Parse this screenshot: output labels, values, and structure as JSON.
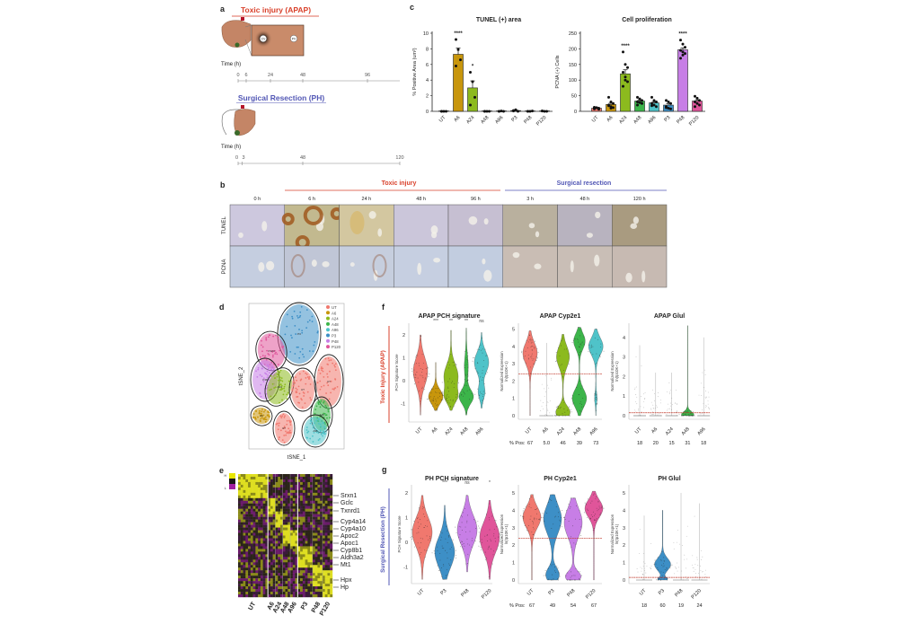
{
  "group_colors": {
    "UT": "#f0786e",
    "A6": "#c8960c",
    "A24": "#8cba1e",
    "A48": "#3cb54a",
    "A96": "#4fc3c9",
    "P3": "#3d8fc6",
    "P48": "#c77ee6",
    "P120": "#e0559a"
  },
  "accent_colors": {
    "toxic": "#d9412b",
    "surgical": "#5257b5"
  },
  "panel_a": {
    "label": "a",
    "toxic_title": "Toxic injury (APAP)",
    "cv_label": "CV",
    "pv_label": "PV",
    "time_label": "Time (h)",
    "toxic_ticks": [
      {
        "t": 0,
        "label": "0"
      },
      {
        "t": 6,
        "label": "6"
      },
      {
        "t": 24,
        "label": "24"
      },
      {
        "t": 48,
        "label": "48"
      },
      {
        "t": 96,
        "label": "96"
      }
    ],
    "ph_title": "Surgical Resection (PH)",
    "ph_time_label": "Time (h)",
    "ph_ticks": [
      {
        "t": 0,
        "label": "0"
      },
      {
        "t": 3,
        "label": "3"
      },
      {
        "t": 48,
        "label": "48"
      },
      {
        "t": 120,
        "label": "120"
      }
    ],
    "axis_max_h": 120
  },
  "panel_b": {
    "label": "b",
    "toxic_header": "Toxic injury",
    "surgical_header": "Surgical resection",
    "time_labels": [
      "0 h",
      "6 h",
      "24 h",
      "48 h",
      "96 h",
      "3 h",
      "48 h",
      "120 h"
    ],
    "row_labels": [
      "TUNEL",
      "PCNA"
    ]
  },
  "panel_c": {
    "label": "c"
  },
  "chart_data": [
    {
      "type": "bar",
      "title": "TUNEL (+) area",
      "ylabel": "% Positive Area (um²)",
      "xlabel": "",
      "categories": [
        "UT",
        "A6",
        "A24",
        "A48",
        "A96",
        "P3",
        "P48",
        "P120"
      ],
      "values": [
        0,
        7.3,
        3.0,
        0,
        0,
        0.1,
        0,
        0
      ],
      "sem": [
        0,
        0.8,
        0.9,
        0,
        0,
        0.05,
        0,
        0
      ],
      "points": [
        [
          0,
          0,
          0,
          0
        ],
        [
          9.2,
          7.9,
          6.6,
          5.8
        ],
        [
          5.0,
          3.8,
          1.8,
          0.8
        ],
        [
          0,
          0,
          0,
          0
        ],
        [
          0,
          0.05,
          0,
          0
        ],
        [
          0.1,
          0.2,
          0,
          0.05
        ],
        [
          0,
          0,
          0.05,
          0
        ],
        [
          0.05,
          0,
          0,
          0.05
        ]
      ],
      "significance": [
        "",
        "****",
        "*",
        "",
        "",
        "",
        "",
        ""
      ],
      "ylim": [
        0,
        10
      ],
      "yticks": [
        0,
        2,
        4,
        6,
        8,
        10
      ],
      "grid": false
    },
    {
      "type": "bar",
      "title": "Cell proliferation",
      "ylabel": "PCNA (+) Cells",
      "xlabel": "",
      "categories": [
        "UT",
        "A6",
        "A24",
        "A48",
        "A96",
        "P3",
        "P48",
        "P120"
      ],
      "values": [
        10,
        22,
        120,
        33,
        27,
        20,
        197,
        33
      ],
      "sem": [
        2,
        4,
        13,
        3,
        3,
        4,
        6,
        4
      ],
      "points": [
        [
          8,
          12,
          10,
          9,
          11,
          7,
          13
        ],
        [
          45,
          30,
          25,
          18,
          15,
          12,
          20,
          10
        ],
        [
          190,
          150,
          140,
          125,
          110,
          95,
          80,
          100
        ],
        [
          45,
          40,
          35,
          30,
          28,
          25,
          20
        ],
        [
          45,
          35,
          30,
          25,
          20,
          15,
          18
        ],
        [
          35,
          30,
          25,
          15,
          10,
          8,
          12
        ],
        [
          228,
          215,
          205,
          195,
          190,
          185,
          170,
          180
        ],
        [
          48,
          42,
          35,
          30,
          25,
          20,
          15
        ]
      ],
      "significance": [
        "",
        "",
        "****",
        "",
        "",
        "",
        "****",
        ""
      ],
      "ylim": [
        0,
        250
      ],
      "yticks": [
        0,
        50,
        100,
        150,
        200,
        250
      ],
      "grid": false
    }
  ],
  "panel_d": {
    "label": "d",
    "xlabel": "tSNE_1",
    "ylabel": "tSNE_2",
    "legend": [
      "UT",
      "A6",
      "A24",
      "A48",
      "A96",
      "P3",
      "P48",
      "P120"
    ]
  },
  "panel_e": {
    "label": "e",
    "scale_high": "H",
    "scale_low": "L",
    "columns": [
      "UT",
      "A6",
      "A24",
      "A48",
      "A96",
      "P3",
      "P48",
      "P120"
    ],
    "genes": [
      "Srxn1",
      "Gclc",
      "Txnrd1",
      "Cyp4a14",
      "Cyp4a10",
      "Apoc2",
      "Apoc1",
      "Cyp8b1",
      "Aldh3a2",
      "Mt1",
      "Hpx",
      "Hp"
    ]
  },
  "panel_f": {
    "label": "f",
    "side_label": "Toxic Injury (APAP)",
    "pos_label": "% Pos:",
    "plots": [
      {
        "title": "APAP PCH signature",
        "ylabel": [
          "PCH Signature Score"
        ],
        "yticks": [
          -1,
          0,
          1,
          2
        ],
        "threshold": null,
        "groups": [
          {
            "name": "UT",
            "sig": "",
            "min": -1.5,
            "max": 2.0,
            "peaks": [
              [
                0.4,
                0.6,
                1
              ]
            ]
          },
          {
            "name": "A6",
            "sig": "***",
            "min": -1.3,
            "max": 0.8,
            "peaks": [
              [
                -0.7,
                0.3,
                1
              ]
            ]
          },
          {
            "name": "A24",
            "sig": "**",
            "min": -1.3,
            "max": 2.2,
            "peaks": [
              [
                0.2,
                0.5,
                0.9
              ],
              [
                -0.7,
                0.3,
                0.7
              ]
            ]
          },
          {
            "name": "A48",
            "sig": "**",
            "min": -1.5,
            "max": 2.3,
            "peaks": [
              [
                -0.7,
                0.3,
                1
              ],
              [
                0.6,
                0.5,
                0.25
              ]
            ]
          },
          {
            "name": "A96",
            "sig": "ns",
            "min": -1.2,
            "max": 2.1,
            "peaks": [
              [
                0.8,
                0.45,
                1
              ],
              [
                -0.5,
                0.3,
                0.45
              ]
            ]
          }
        ],
        "pos": []
      },
      {
        "title": "APAP Cyp2e1",
        "ylabel": [
          "Normalized Expression",
          "ln(tp10K+1)"
        ],
        "yticks": [
          0,
          1,
          2,
          3,
          4,
          5
        ],
        "threshold": 2.4,
        "groups": [
          {
            "name": "UT",
            "min": 0,
            "max": 4.9,
            "peaks": [
              [
                3.6,
                0.6,
                1
              ]
            ]
          },
          {
            "name": "A6",
            "min": 0,
            "max": 4.2,
            "line": true
          },
          {
            "name": "A24",
            "min": 0,
            "max": 4.7,
            "peaks": [
              [
                3.4,
                0.6,
                0.8
              ],
              [
                0.2,
                0.35,
                0.9
              ]
            ]
          },
          {
            "name": "A48",
            "min": 0,
            "max": 5.1,
            "peaks": [
              [
                4.3,
                0.45,
                0.8
              ],
              [
                1.0,
                0.5,
                1
              ]
            ]
          },
          {
            "name": "A96",
            "min": 0,
            "max": 5.0,
            "peaks": [
              [
                4.0,
                0.5,
                1
              ],
              [
                1.0,
                0.3,
                0.15
              ]
            ]
          }
        ],
        "pos": [
          "67",
          "5.0",
          "46",
          "39",
          "73"
        ]
      },
      {
        "title": "APAP Glul",
        "ylabel": [
          "Normalized Expression",
          "ln(tp10K+1)"
        ],
        "yticks": [
          0,
          1,
          2,
          3,
          4
        ],
        "threshold": 0.15,
        "groups": [
          {
            "name": "UT",
            "min": 0,
            "max": 3.6,
            "line": true
          },
          {
            "name": "A6",
            "min": 0,
            "max": 2.2,
            "line": true
          },
          {
            "name": "A24",
            "min": 0,
            "max": 2.2,
            "line": true
          },
          {
            "name": "A48",
            "min": 0,
            "max": 4.6,
            "peaks": [
              [
                0.05,
                0.15,
                1
              ]
            ]
          },
          {
            "name": "A96",
            "min": 0,
            "max": 4.0,
            "line": true
          }
        ],
        "pos": [
          "18",
          "20",
          "15",
          "31",
          "18"
        ]
      }
    ]
  },
  "panel_g": {
    "label": "g",
    "side_label": "Surgical Resection (PH)",
    "pos_label": "% Pos:",
    "plots": [
      {
        "title": "PH PCH signature",
        "ylabel": [
          "PCH Signature Score"
        ],
        "yticks": [
          -1,
          0,
          1,
          2
        ],
        "threshold": null,
        "groups": [
          {
            "name": "UT",
            "sig": "",
            "min": -1.5,
            "max": 1.9,
            "peaks": [
              [
                0.4,
                0.6,
                1
              ]
            ]
          },
          {
            "name": "P3",
            "sig": "***",
            "min": -1.5,
            "max": 1.5,
            "peaks": [
              [
                -0.4,
                0.6,
                1
              ]
            ]
          },
          {
            "name": "P48",
            "sig": "ns",
            "min": -1.2,
            "max": 1.9,
            "peaks": [
              [
                0.5,
                0.6,
                1
              ]
            ]
          },
          {
            "name": "P120",
            "sig": "*",
            "min": -1.5,
            "max": 1.7,
            "peaks": [
              [
                0.2,
                0.6,
                1
              ]
            ]
          }
        ],
        "pos": []
      },
      {
        "title": "PH Cyp2e1",
        "ylabel": [
          "Normalized Expression",
          "ln(tp10K+1)"
        ],
        "yticks": [
          0,
          1,
          2,
          3,
          4,
          5
        ],
        "threshold": 2.4,
        "groups": [
          {
            "name": "UT",
            "min": 0,
            "max": 4.9,
            "peaks": [
              [
                3.6,
                0.6,
                1
              ]
            ]
          },
          {
            "name": "P3",
            "min": 0,
            "max": 4.9,
            "peaks": [
              [
                3.5,
                0.8,
                0.8
              ],
              [
                0.3,
                0.4,
                0.6
              ]
            ]
          },
          {
            "name": "P48",
            "min": 0,
            "max": 4.7,
            "peaks": [
              [
                3.3,
                0.8,
                0.8
              ],
              [
                0.2,
                0.3,
                0.7
              ]
            ]
          },
          {
            "name": "P120",
            "min": 0,
            "max": 5.1,
            "peaks": [
              [
                4.1,
                0.5,
                1
              ]
            ]
          }
        ],
        "pos": [
          "67",
          "49",
          "54",
          "67"
        ]
      },
      {
        "title": "PH Glul",
        "ylabel": [
          "Normalized Expression",
          "ln(tp10K+1)"
        ],
        "yticks": [
          0,
          1,
          2,
          3,
          4,
          5
        ],
        "threshold": 0.15,
        "groups": [
          {
            "name": "UT",
            "min": 0,
            "max": 3.7,
            "line": true
          },
          {
            "name": "P3",
            "min": 0,
            "max": 4.0,
            "peaks": [
              [
                0.9,
                0.35,
                1
              ],
              [
                0.05,
                0.1,
                0.6
              ]
            ]
          },
          {
            "name": "P48",
            "min": 0,
            "max": 5.0,
            "line": true
          },
          {
            "name": "P120",
            "min": 0,
            "max": 4.4,
            "line": true
          }
        ],
        "pos": [
          "18",
          "60",
          "19",
          "24"
        ]
      }
    ]
  }
}
